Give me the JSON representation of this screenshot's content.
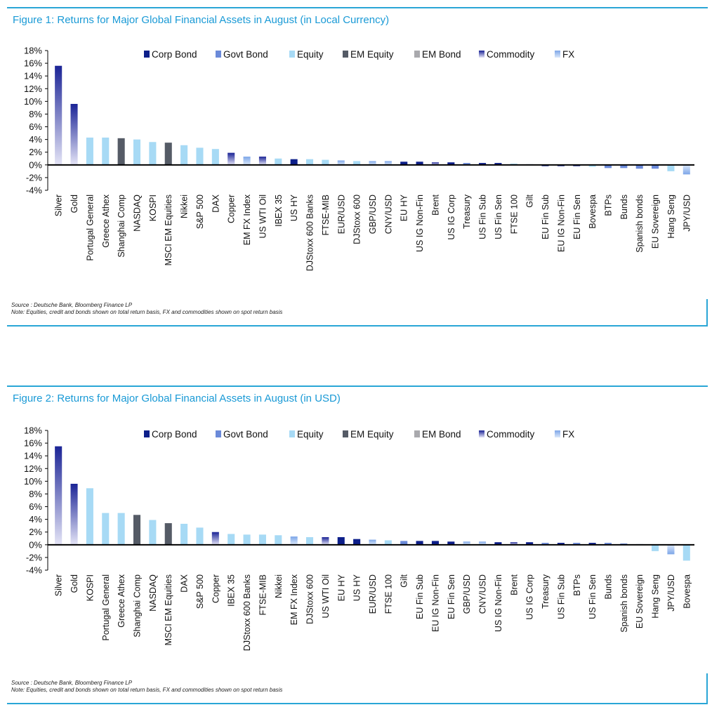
{
  "legend": [
    {
      "key": "corp",
      "label": "Corp Bond",
      "color": "#0d1f8a"
    },
    {
      "key": "govt",
      "label": "Govt Bond",
      "color": "#6b8ad9"
    },
    {
      "key": "equity",
      "label": "Equity",
      "color": "#a7daf5"
    },
    {
      "key": "emeq",
      "label": "EM Equity",
      "color": "#555b66"
    },
    {
      "key": "embond",
      "label": "EM Bond",
      "color": "#a9a9ad"
    },
    {
      "key": "commodity",
      "label": "Commodity",
      "color": "#1b2496"
    },
    {
      "key": "fx",
      "label": "FX",
      "color": "#8db3ea"
    }
  ],
  "figures": [
    {
      "title": "Figure 1: Returns for Major Global Financial Assets in August (in Local Currency)",
      "source": "Source : Deutsche Bank, Bloomberg Finance LP",
      "note": "Note: Equities, credit and bonds shown on total return basis, FX and commodities shown on spot return basis"
    },
    {
      "title": "Figure 2: Returns for Major Global Financial Assets in August (in USD)",
      "source": "Source : Deutsche Bank, Bloomberg Finance LP",
      "note": "Note: Equities, credit and bonds shown on total return basis, FX and commodities shown on spot return basis"
    }
  ],
  "chart_data": [
    {
      "type": "bar",
      "title": "Figure 1: Returns for Major Global Financial Assets in August (in Local Currency)",
      "ylim": [
        -4,
        18
      ],
      "yticks": [
        "-4%",
        "-2%",
        "0%",
        "2%",
        "4%",
        "6%",
        "8%",
        "10%",
        "12%",
        "14%",
        "16%",
        "18%"
      ],
      "legend_position": "top",
      "categories": [
        "Silver",
        "Gold",
        "Portugal General",
        "Greece Athex",
        "Shanghai Comp",
        "NASDAQ",
        "KOSPI",
        "MSCI EM Equities",
        "Nikkei",
        "S&P 500",
        "DAX",
        "Copper",
        "EM FX Index",
        "US WTI Oil",
        "IBEX 35",
        "US HY",
        "DJStoxx 600 Banks",
        "FTSE-MIB",
        "EUR/USD",
        "DJStoxx 600",
        "GBP/USD",
        "CNY/USD",
        "EU HY",
        "US IG Non-Fin",
        "Brent",
        "US IG Corp",
        "Treasury",
        "US Fin Sub",
        "US Fin Sen",
        "FTSE 100",
        "Gilt",
        "EU Fin Sub",
        "EU IG Non-Fin",
        "EU Fin Sen",
        "Bovespa",
        "BTPs",
        "Bunds",
        "Spanish bonds",
        "EU Sovereign",
        "Hang Seng",
        "JPY/USD"
      ],
      "values": [
        15.6,
        9.6,
        4.3,
        4.3,
        4.2,
        4.0,
        3.6,
        3.5,
        3.1,
        2.7,
        2.5,
        1.9,
        1.3,
        1.3,
        1.0,
        0.9,
        0.9,
        0.8,
        0.7,
        0.6,
        0.6,
        0.6,
        0.5,
        0.5,
        0.4,
        0.4,
        0.3,
        0.3,
        0.3,
        0.2,
        0.1,
        -0.2,
        -0.2,
        -0.2,
        -0.3,
        -0.5,
        -0.5,
        -0.6,
        -0.6,
        -1.0,
        -1.5
      ],
      "asset_class": [
        "commodity",
        "commodity",
        "equity",
        "equity",
        "emeq",
        "equity",
        "equity",
        "emeq",
        "equity",
        "equity",
        "equity",
        "commodity",
        "fx",
        "commodity",
        "equity",
        "corp",
        "equity",
        "equity",
        "fx",
        "equity",
        "fx",
        "fx",
        "corp",
        "corp",
        "commodity",
        "corp",
        "govt",
        "corp",
        "corp",
        "equity",
        "govt",
        "corp",
        "corp",
        "corp",
        "equity",
        "govt",
        "govt",
        "govt",
        "govt",
        "equity",
        "fx"
      ]
    },
    {
      "type": "bar",
      "title": "Figure 2: Returns for Major Global Financial Assets in August (in USD)",
      "ylim": [
        -4,
        18
      ],
      "yticks": [
        "-4%",
        "-2%",
        "0%",
        "2%",
        "4%",
        "6%",
        "8%",
        "10%",
        "12%",
        "14%",
        "16%",
        "18%"
      ],
      "legend_position": "top",
      "categories": [
        "Silver",
        "Gold",
        "KOSPI",
        "Portugal General",
        "Greece Athex",
        "Shanghai Comp",
        "NASDAQ",
        "MSCI EM Equities",
        "DAX",
        "S&P 500",
        "Copper",
        "IBEX 35",
        "DJStoxx 600 Banks",
        "FTSE-MIB",
        "Nikkei",
        "EM FX Index",
        "DJStoxx 600",
        "US WTI Oil",
        "EU HY",
        "US HY",
        "EUR/USD",
        "FTSE 100",
        "Gilt",
        "EU Fin Sub",
        "EU IG Non-Fin",
        "EU Fin Sen",
        "GBP/USD",
        "CNY/USD",
        "US IG Non-Fin",
        "Brent",
        "US IG Corp",
        "Treasury",
        "US Fin Sub",
        "BTPs",
        "US Fin Sen",
        "Bunds",
        "Spanish bonds",
        "EU Sovereign",
        "Hang Seng",
        "JPY/USD",
        "Bovespa"
      ],
      "values": [
        15.5,
        9.6,
        8.9,
        5.0,
        5.0,
        4.7,
        3.9,
        3.4,
        3.3,
        2.7,
        2.0,
        1.7,
        1.6,
        1.6,
        1.5,
        1.3,
        1.2,
        1.2,
        1.2,
        0.9,
        0.8,
        0.7,
        0.6,
        0.6,
        0.6,
        0.5,
        0.5,
        0.5,
        0.4,
        0.4,
        0.4,
        0.3,
        0.3,
        0.3,
        0.3,
        0.3,
        0.2,
        0.1,
        -1.0,
        -1.5,
        -2.5
      ],
      "asset_class": [
        "commodity",
        "commodity",
        "equity",
        "equity",
        "equity",
        "emeq",
        "equity",
        "emeq",
        "equity",
        "equity",
        "commodity",
        "equity",
        "equity",
        "equity",
        "equity",
        "fx",
        "equity",
        "commodity",
        "corp",
        "corp",
        "fx",
        "equity",
        "govt",
        "corp",
        "corp",
        "corp",
        "fx",
        "fx",
        "corp",
        "commodity",
        "corp",
        "govt",
        "corp",
        "govt",
        "corp",
        "govt",
        "govt",
        "govt",
        "equity",
        "fx",
        "equity"
      ]
    }
  ]
}
